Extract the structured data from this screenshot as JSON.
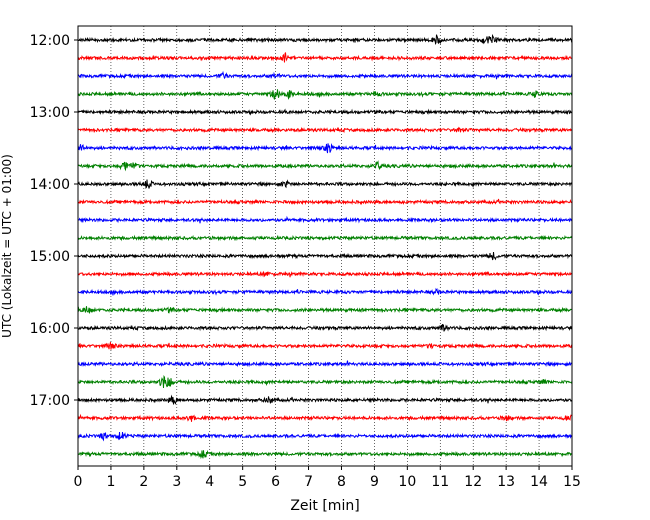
{
  "chart_data": {
    "type": "line",
    "title": "",
    "xlabel": "Zeit  [min]",
    "ylabel": "UTC (Lokalzeit = UTC + 01:00)",
    "xlim": [
      0,
      15
    ],
    "x_ticks": [
      "0",
      "1",
      "2",
      "3",
      "4",
      "5",
      "6",
      "7",
      "8",
      "9",
      "10",
      "11",
      "12",
      "13",
      "14",
      "15"
    ],
    "y_ticks": [
      "12:00",
      "13:00",
      "14:00",
      "15:00",
      "16:00",
      "17:00"
    ],
    "grid": "vertical dotted",
    "trace_colors": [
      "#000000",
      "#ff0000",
      "#0000ff",
      "#008000"
    ],
    "series": [
      {
        "start": "12:00",
        "color": "#000000",
        "bursts": [
          [
            10.9,
            3
          ],
          [
            12.6,
            3.5
          ],
          [
            12.4,
            2
          ]
        ]
      },
      {
        "start": "12:15",
        "color": "#ff0000",
        "bursts": [
          [
            6.3,
            4
          ]
        ]
      },
      {
        "start": "12:30",
        "color": "#0000ff",
        "bursts": [
          [
            4.4,
            2.5
          ],
          [
            6.0,
            2
          ]
        ]
      },
      {
        "start": "12:45",
        "color": "#008000",
        "bursts": [
          [
            6.0,
            5
          ],
          [
            6.4,
            3.5
          ],
          [
            9.1,
            2
          ],
          [
            13.9,
            2.5
          ]
        ]
      },
      {
        "start": "13:00",
        "color": "#000000",
        "bursts": []
      },
      {
        "start": "13:15",
        "color": "#ff0000",
        "bursts": [
          [
            11.6,
            2
          ]
        ]
      },
      {
        "start": "13:30",
        "color": "#0000ff",
        "bursts": [
          [
            0.1,
            2.5
          ],
          [
            7.6,
            4
          ]
        ]
      },
      {
        "start": "13:45",
        "color": "#008000",
        "bursts": [
          [
            1.4,
            4
          ],
          [
            1.7,
            2.5
          ],
          [
            9.1,
            3
          ]
        ]
      },
      {
        "start": "14:00",
        "color": "#000000",
        "bursts": [
          [
            2.1,
            4
          ],
          [
            6.3,
            2.5
          ]
        ]
      },
      {
        "start": "14:15",
        "color": "#ff0000",
        "bursts": []
      },
      {
        "start": "14:30",
        "color": "#0000ff",
        "bursts": []
      },
      {
        "start": "14:45",
        "color": "#008000",
        "bursts": []
      },
      {
        "start": "15:00",
        "color": "#000000",
        "bursts": [
          [
            12.6,
            3
          ]
        ]
      },
      {
        "start": "15:15",
        "color": "#ff0000",
        "bursts": [
          [
            5.7,
            1.5
          ]
        ]
      },
      {
        "start": "15:30",
        "color": "#0000ff",
        "bursts": [
          [
            10.9,
            1.5
          ]
        ]
      },
      {
        "start": "15:45",
        "color": "#008000",
        "bursts": [
          [
            0.3,
            3
          ],
          [
            2.8,
            1.5
          ]
        ]
      },
      {
        "start": "16:00",
        "color": "#000000",
        "bursts": [
          [
            11.1,
            2.5
          ]
        ]
      },
      {
        "start": "16:15",
        "color": "#ff0000",
        "bursts": [
          [
            1.0,
            2.5
          ],
          [
            10.7,
            1.5
          ]
        ]
      },
      {
        "start": "16:30",
        "color": "#0000ff",
        "bursts": []
      },
      {
        "start": "16:45",
        "color": "#008000",
        "bursts": [
          [
            2.6,
            5
          ],
          [
            2.8,
            3
          ],
          [
            14.1,
            1.5
          ]
        ]
      },
      {
        "start": "17:00",
        "color": "#000000",
        "bursts": [
          [
            2.9,
            3
          ],
          [
            5.8,
            3
          ]
        ]
      },
      {
        "start": "17:15",
        "color": "#ff0000",
        "bursts": [
          [
            3.4,
            3
          ],
          [
            13.0,
            2
          ],
          [
            14.9,
            2
          ]
        ]
      },
      {
        "start": "17:30",
        "color": "#0000ff",
        "bursts": [
          [
            1.3,
            3.5
          ],
          [
            0.8,
            2.5
          ]
        ]
      },
      {
        "start": "17:45",
        "color": "#008000",
        "bursts": [
          [
            3.8,
            3
          ]
        ]
      }
    ]
  }
}
